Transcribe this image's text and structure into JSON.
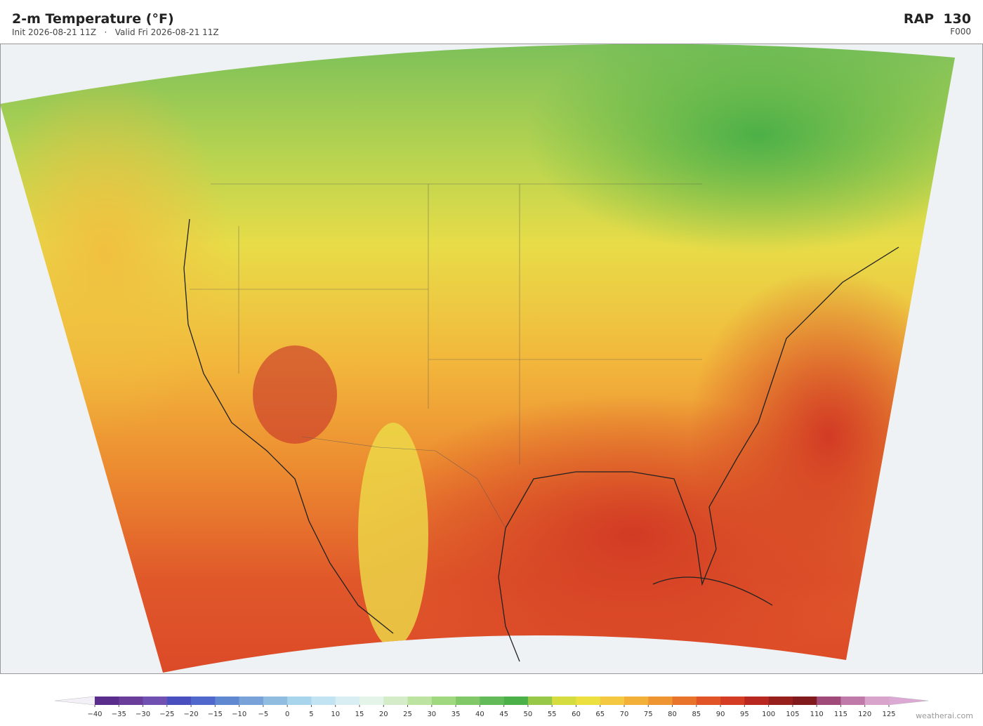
{
  "header": {
    "title": "2-m Temperature  (°F)",
    "subtitle": "Init 2026-08-21 11Z   ·   Valid Fri 2026-08-21 11Z",
    "model": "RAP  130",
    "forecast_hour": "F000"
  },
  "colorbar": {
    "ticks": [
      {
        "value": -40,
        "label": "−40"
      },
      {
        "value": -35,
        "label": "−35"
      },
      {
        "value": -30,
        "label": "−30"
      },
      {
        "value": -25,
        "label": "−25"
      },
      {
        "value": -20,
        "label": "−20"
      },
      {
        "value": -15,
        "label": "−15"
      },
      {
        "value": -10,
        "label": "−10"
      },
      {
        "value": -5,
        "label": "−5"
      },
      0,
      5,
      10,
      15,
      20,
      25,
      30,
      35,
      40,
      45,
      50,
      55,
      60,
      65,
      70,
      75,
      80,
      85,
      90,
      95,
      100,
      105,
      110,
      115,
      120,
      125
    ],
    "colors": [
      "#5a2d8c",
      "#6a3d9a",
      "#7050b0",
      "#4a4fc0",
      "#5068cc",
      "#6088d0",
      "#78a2d8",
      "#90bce0",
      "#a8d4ec",
      "#c2e4f2",
      "#d8eef2",
      "#e4f4e8",
      "#d4ecc8",
      "#bce4a0",
      "#a0d880",
      "#80c868",
      "#62ba58",
      "#4cb048",
      "#98c848",
      "#d4dc40",
      "#ece040",
      "#f4c840",
      "#f2b038",
      "#ee9430",
      "#e8742c",
      "#e05428",
      "#d43c24",
      "#b82820",
      "#98201c",
      "#801a1c",
      "#a04a7a",
      "#c07aaa",
      "#d8a4cc"
    ],
    "under_color": "#f4f0f8",
    "over_color": "#dca8d4"
  },
  "watermark": "weatherai.com"
}
